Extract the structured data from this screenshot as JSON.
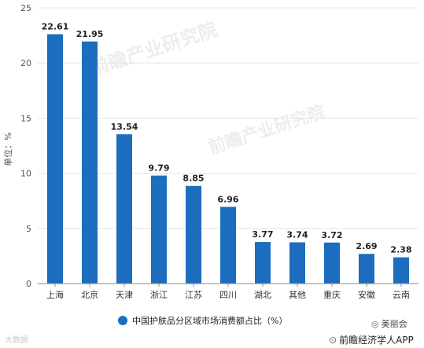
{
  "chart_data": {
    "type": "bar",
    "categories": [
      "上海",
      "北京",
      "天津",
      "浙江",
      "江苏",
      "四川",
      "湖北",
      "其他",
      "重庆",
      "安徽",
      "云南"
    ],
    "values": [
      22.61,
      21.95,
      13.54,
      9.79,
      8.85,
      6.96,
      3.77,
      3.74,
      3.72,
      2.69,
      2.38
    ],
    "value_labels": [
      "22.61",
      "21.95",
      "13.54",
      "9.79",
      "8.85",
      "6.96",
      "3.77",
      "3.74",
      "3.72",
      "2.69",
      "2.38"
    ],
    "ylabel": "单位：%",
    "ylim": [
      0,
      25
    ],
    "yticks": [
      0,
      5,
      10,
      15,
      20,
      25
    ],
    "grid": true,
    "legend_position": "bottom",
    "series": [
      {
        "name": "中国护肤品分区域市场消费额占比（%）",
        "color": "#1c6dbd"
      }
    ],
    "colors": {
      "bar": "#1c6dbd",
      "grid": "#e6e6e6",
      "axis": "#888888"
    }
  },
  "watermark": "前瞻产业研究院",
  "footer": {
    "brand_left": "大数据",
    "wechat": "美丽会",
    "app": "前瞻经济学人APP",
    "icons": {
      "wechat": "wechat-icon",
      "app": "magnifier-icon"
    }
  }
}
